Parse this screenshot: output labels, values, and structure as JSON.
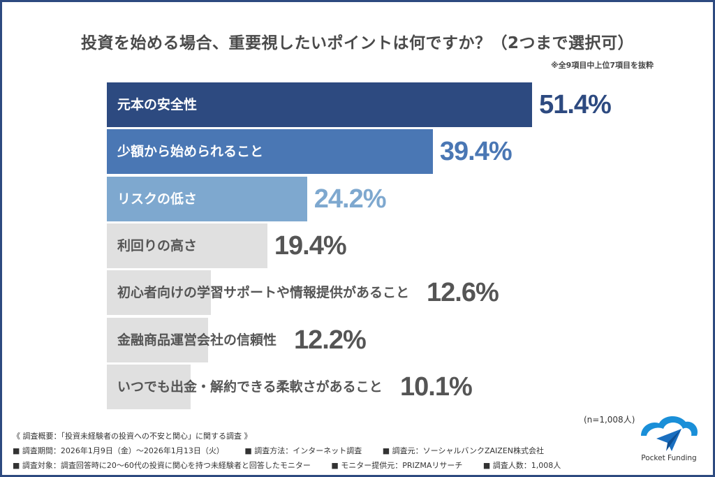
{
  "chart_data": {
    "type": "bar",
    "orientation": "horizontal",
    "title": "投資を始める場合、重要視したいポイントは何ですか？（2つまで選択可）",
    "subtitle": "※全9項目中上位7項目を抜粋",
    "categories": [
      "元本の安全性",
      "少額から始められること",
      "リスクの低さ",
      "利回りの高さ",
      "初心者向けの学習サポートや情報提供があること",
      "金融商品運営会社の信頼性",
      "いつでも出金・解約できる柔軟さがあること"
    ],
    "values": [
      51.4,
      39.4,
      24.2,
      19.4,
      12.6,
      12.2,
      10.1
    ],
    "value_labels": [
      "51.4%",
      "39.4%",
      "24.2%",
      "19.4%",
      "12.6%",
      "12.2%",
      "10.1%"
    ],
    "bar_colors": [
      "#2d4a80",
      "#4a77b4",
      "#7ea8cf",
      "#e0e0e0",
      "#e0e0e0",
      "#e0e0e0",
      "#e0e0e0"
    ],
    "label_colors": [
      "#ffffff",
      "#ffffff",
      "#ffffff",
      "#555555",
      "#555555",
      "#555555",
      "#555555"
    ],
    "value_colors": [
      "#2d4a80",
      "#4a77b4",
      "#7ea8cf",
      "#555555",
      "#555555",
      "#555555",
      "#555555"
    ],
    "sample_size": "(n=1,008人)",
    "grid": false,
    "legend": "none"
  },
  "footer": {
    "heading": "《 調査概要：「投資未経験者の投資への不安と関心」に関する調査 》",
    "row1": [
      "■ 調査期間：2026年1月9日（金）～2026年1月13日（火）",
      "■ 調査方法：インターネット調査",
      "■ 調査元：ソーシャルバンクZAIZEN株式会社"
    ],
    "row2": [
      "■ 調査対象：調査回答時に20～60代の投資に関心を持つ未経験者と回答したモニター",
      "■ モニター提供元：PRIZMAリサーチ",
      "■ 調査人数：1,008人"
    ]
  },
  "logo": {
    "text": "Pocket Funding",
    "color": "#1a8fd8"
  }
}
